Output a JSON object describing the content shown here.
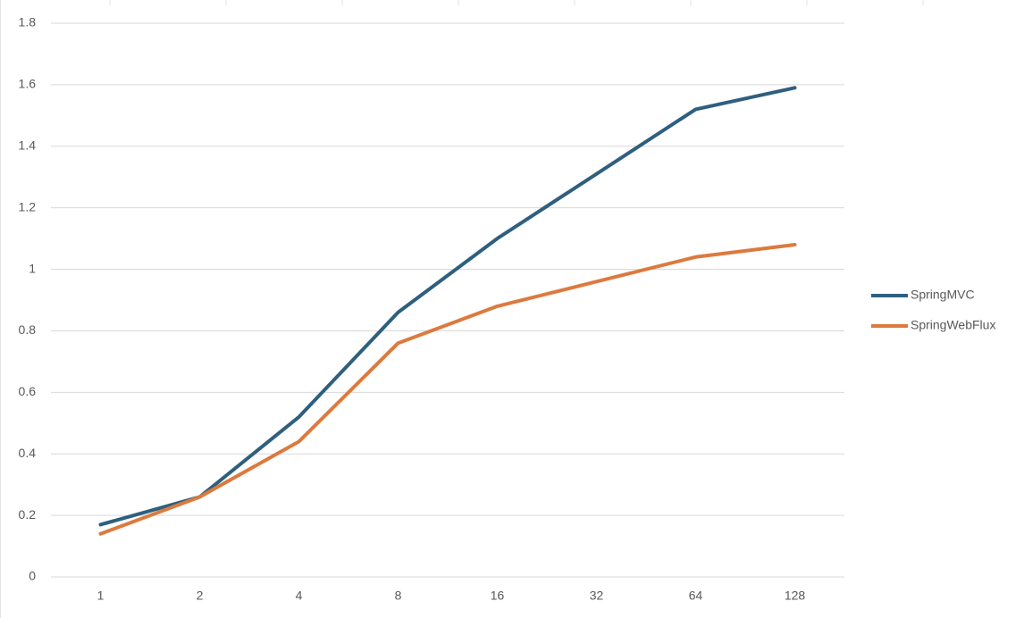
{
  "chart_data": {
    "type": "line",
    "categories": [
      "1",
      "2",
      "4",
      "8",
      "16",
      "32",
      "64",
      "128"
    ],
    "series": [
      {
        "name": "SpringMVC",
        "color": "#2f5f7f",
        "values": [
          0.17,
          0.26,
          0.52,
          0.86,
          1.1,
          1.31,
          1.52,
          1.59
        ]
      },
      {
        "name": "SpringWebFlux",
        "color": "#dc7a3e",
        "values": [
          0.14,
          0.26,
          0.44,
          0.76,
          0.88,
          0.96,
          1.04,
          1.08
        ]
      }
    ],
    "ylim": [
      0,
      1.8
    ],
    "yticks": [
      0,
      0.2,
      0.4,
      0.6,
      0.8,
      1,
      1.2,
      1.4,
      1.6,
      1.8
    ],
    "grid": true,
    "legend": "right"
  }
}
